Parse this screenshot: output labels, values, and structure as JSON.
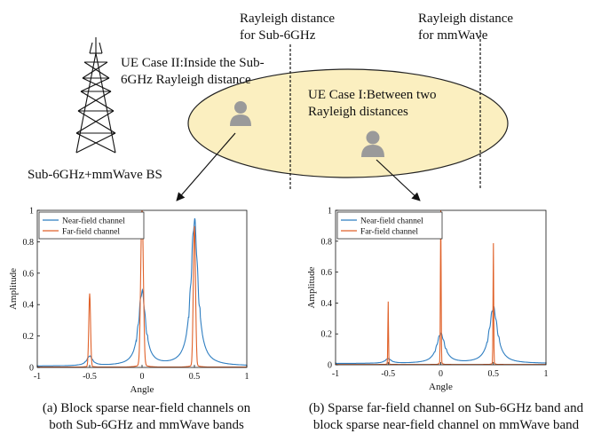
{
  "top": {
    "rayleigh_sub6": "Rayleigh distance\nfor Sub-6GHz",
    "rayleigh_mmwave": "Rayleigh distance\nfor mmWave",
    "case2": "UE Case II:Inside the Sub-\n6GHz Rayleigh distance",
    "case1": "UE Case I:Between two\nRayleigh distances",
    "bs_label": "Sub-6GHz+mmWave BS"
  },
  "colors": {
    "near": "#2f7ec1",
    "far": "#e0622a",
    "ellipse_fill": "#fbefc0",
    "ellipse_stroke": "#222222",
    "ue": "#9a9a9a"
  },
  "icons": {
    "tower": "cell-tower-icon",
    "user": "person-icon"
  },
  "captions": {
    "a": "(a) Block sparse near-field channels on\nboth Sub-6GHz and mmWave bands",
    "b": "(b) Sparse far-field channel on Sub-6GHz band and\nblock sparse near-field channel on mmWave band"
  },
  "chart_data": [
    {
      "type": "line",
      "xlabel": "Angle",
      "ylabel": "Amplitude",
      "xlim": [
        -1,
        1
      ],
      "ylim": [
        0,
        1
      ],
      "xticks": [
        "-1",
        "-0.5",
        "0",
        "0.5",
        "1"
      ],
      "yticks": [
        "0",
        "0.2",
        "0.4",
        "0.6",
        "0.8",
        "1"
      ],
      "legend": "top-left",
      "grid": false,
      "series": [
        {
          "name": "Near-field channel",
          "peaks": [
            {
              "x": -0.5,
              "y": 0.06,
              "width": 0.05
            },
            {
              "x": 0.0,
              "y": 0.47,
              "width": 0.06
            },
            {
              "x": 0.5,
              "y": 0.92,
              "width": 0.06
            }
          ]
        },
        {
          "name": "Far-field channel",
          "peaks": [
            {
              "x": -0.5,
              "y": 0.46,
              "width": 0.02
            },
            {
              "x": 0.0,
              "y": 1.0,
              "width": 0.03
            },
            {
              "x": 0.5,
              "y": 0.88,
              "width": 0.025
            }
          ]
        }
      ]
    },
    {
      "type": "line",
      "xlabel": "Angle",
      "ylabel": "Amplitude",
      "xlim": [
        -1,
        1
      ],
      "ylim": [
        0,
        1
      ],
      "xticks": [
        "-1",
        "-0.5",
        "0",
        "0.5",
        "1"
      ],
      "yticks": [
        "0",
        "0.2",
        "0.4",
        "0.6",
        "0.8",
        "1"
      ],
      "legend": "top-left",
      "grid": false,
      "series": [
        {
          "name": "Near-field channel",
          "peaks": [
            {
              "x": -0.5,
              "y": 0.03,
              "width": 0.05
            },
            {
              "x": 0.0,
              "y": 0.19,
              "width": 0.07
            },
            {
              "x": 0.5,
              "y": 0.36,
              "width": 0.07
            }
          ]
        },
        {
          "name": "Far-field channel",
          "peaks": [
            {
              "x": -0.5,
              "y": 0.4,
              "width": 0.008
            },
            {
              "x": 0.0,
              "y": 1.0,
              "width": 0.008
            },
            {
              "x": 0.5,
              "y": 0.77,
              "width": 0.008
            }
          ]
        }
      ]
    }
  ]
}
